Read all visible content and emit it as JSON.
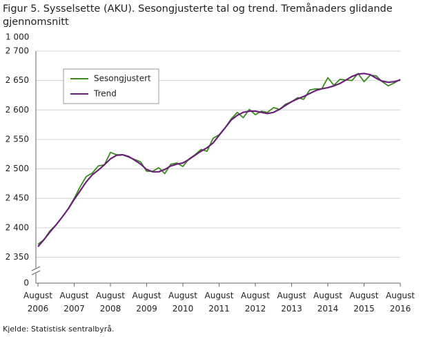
{
  "chart_data": {
    "type": "line",
    "title": "Figur 5. Sysselsette (AKU).  Sesongjusterte tal og trend. Tremånaders glidande gjennomsnitt",
    "y_unit": "1 000",
    "source": "Kjelde: Statistisk sentralbyrå.",
    "categories": [
      "August 2006",
      null,
      null,
      null,
      null,
      null,
      "August 2007",
      null,
      null,
      null,
      null,
      null,
      "August 2008",
      null,
      null,
      null,
      null,
      null,
      "August 2009",
      null,
      null,
      null,
      null,
      null,
      "August 2010",
      null,
      null,
      null,
      null,
      null,
      "August 2011",
      null,
      null,
      null,
      null,
      null,
      "August 2012",
      null,
      null,
      null,
      null,
      null,
      "August 2013",
      null,
      null,
      null,
      null,
      null,
      "August 2014",
      null,
      null,
      null,
      null,
      null,
      "August 2015",
      null,
      null,
      null,
      null,
      null,
      "August 2016"
    ],
    "series": [
      {
        "name": "Sesongjustert",
        "color": "#3a8a1e",
        "values": [
          2372,
          2380,
          2395,
          2405,
          2418,
          2432,
          2450,
          2470,
          2487,
          2493,
          2505,
          2507,
          2528,
          2524,
          2524,
          2520,
          2516,
          2512,
          2496,
          2496,
          2502,
          2492,
          2508,
          2510,
          2504,
          2517,
          2524,
          2533,
          2530,
          2552,
          2558,
          2570,
          2585,
          2596,
          2587,
          2601,
          2592,
          2598,
          2596,
          2604,
          2601,
          2610,
          2614,
          2621,
          2618,
          2634,
          2636,
          2636,
          2655,
          2642,
          2652,
          2651,
          2650,
          2662,
          2648,
          2659,
          2658,
          2648,
          2641,
          2646,
          2652
        ]
      },
      {
        "name": "Trend",
        "color": "#6a1f7a",
        "values": [
          2368,
          2380,
          2393,
          2405,
          2418,
          2432,
          2448,
          2463,
          2478,
          2490,
          2498,
          2507,
          2517,
          2523,
          2524,
          2521,
          2515,
          2508,
          2499,
          2495,
          2495,
          2499,
          2505,
          2508,
          2510,
          2516,
          2523,
          2530,
          2536,
          2544,
          2557,
          2570,
          2583,
          2591,
          2596,
          2598,
          2598,
          2596,
          2594,
          2596,
          2601,
          2608,
          2614,
          2619,
          2623,
          2628,
          2633,
          2636,
          2638,
          2641,
          2645,
          2651,
          2657,
          2661,
          2662,
          2660,
          2654,
          2649,
          2647,
          2648,
          2651
        ]
      }
    ],
    "ylim": [
      2306,
      2700
    ],
    "yticks": [
      {
        "value": 0,
        "label": "0"
      },
      {
        "value": 2350,
        "label": "2 350"
      },
      {
        "value": 2400,
        "label": "2 400"
      },
      {
        "value": 2450,
        "label": "2 450"
      },
      {
        "value": 2500,
        "label": "2 500"
      },
      {
        "value": 2550,
        "label": "2 550"
      },
      {
        "value": 2600,
        "label": "2 600"
      },
      {
        "value": 2650,
        "label": "2 650"
      },
      {
        "value": 2700,
        "label": "2 700"
      }
    ],
    "grid": true,
    "axis_break": true,
    "legend": "upper left"
  }
}
